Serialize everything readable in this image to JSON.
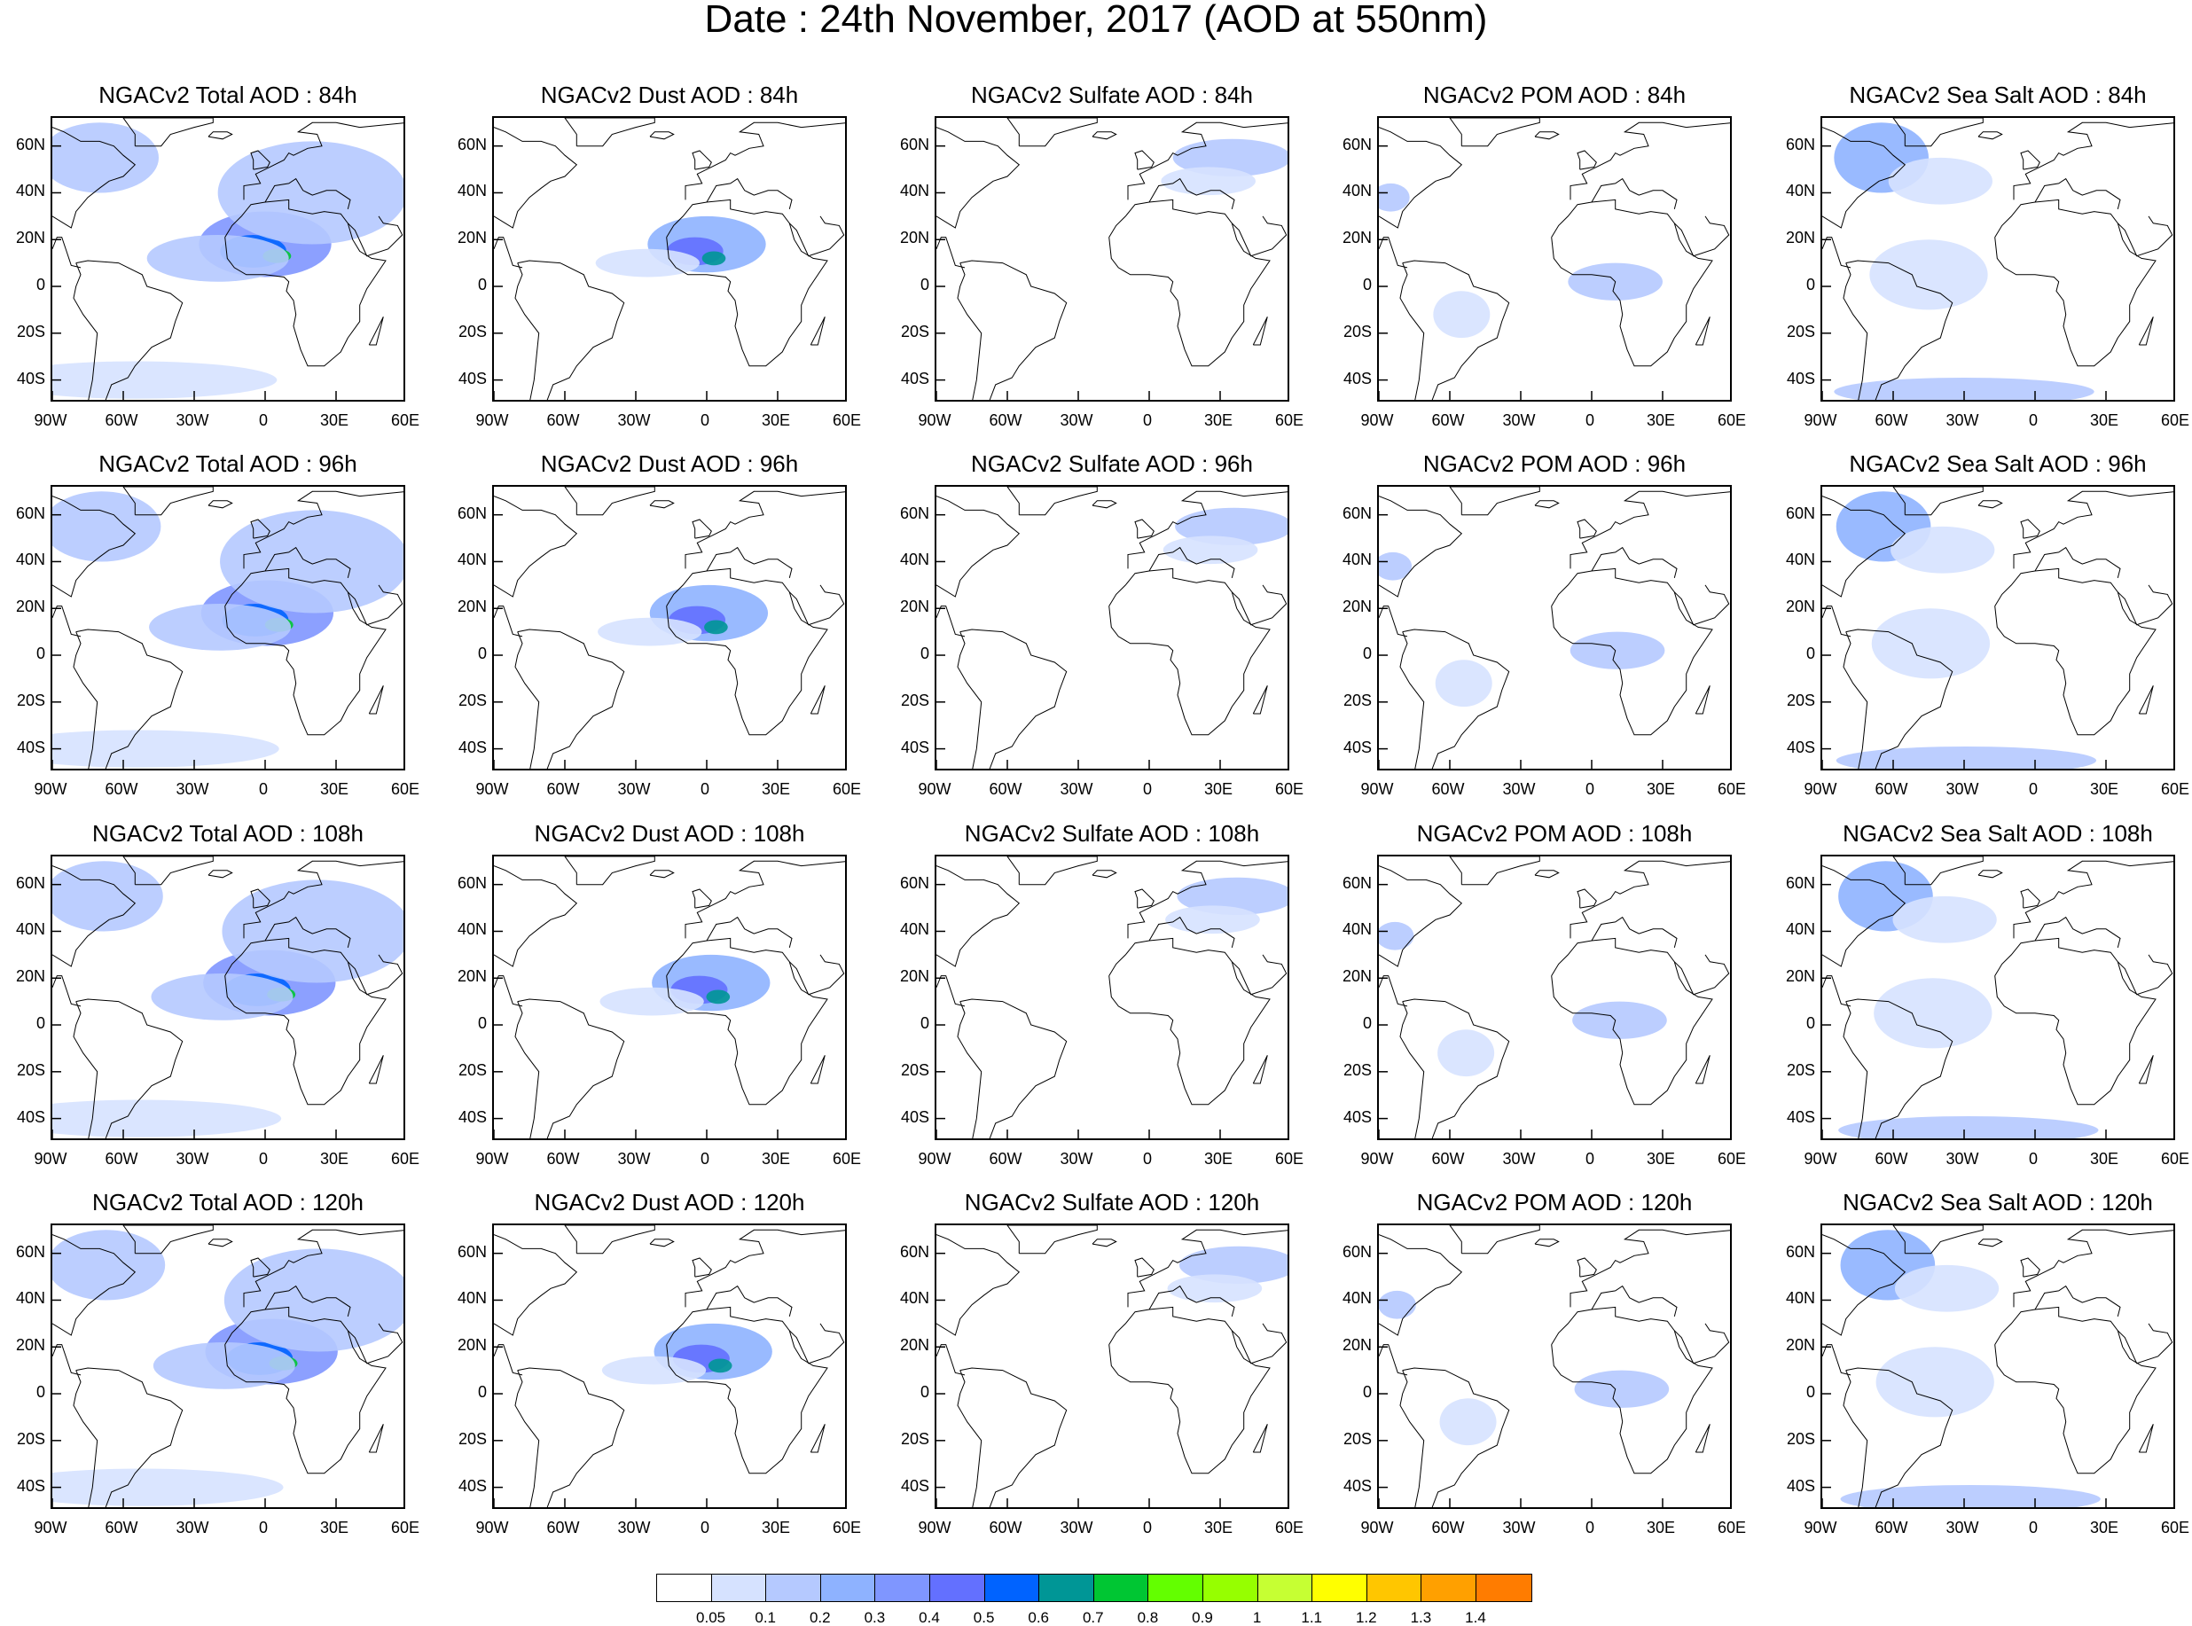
{
  "title": "Date : 24th November, 2017 (AOD at 550nm)",
  "rows": [
    {
      "panels": [
        "NGACv2 Total AOD : 84h",
        "NGACv2 Dust AOD : 84h",
        "NGACv2 Sulfate AOD : 84h",
        "NGACv2 POM AOD : 84h",
        "NGACv2 Sea Salt AOD : 84h"
      ]
    },
    {
      "panels": [
        "NGACv2 Total AOD : 96h",
        "NGACv2 Dust AOD : 96h",
        "NGACv2 Sulfate AOD : 96h",
        "NGACv2 POM AOD : 96h",
        "NGACv2 Sea Salt AOD : 96h"
      ]
    },
    {
      "panels": [
        "NGACv2 Total AOD : 108h",
        "NGACv2 Dust AOD : 108h",
        "NGACv2 Sulfate AOD : 108h",
        "NGACv2 POM AOD : 108h",
        "NGACv2 Sea Salt AOD : 108h"
      ]
    },
    {
      "panels": [
        "NGACv2 Total AOD : 120h",
        "NGACv2 Dust AOD : 120h",
        "NGACv2 Sulfate AOD : 120h",
        "NGACv2 POM AOD : 120h",
        "NGACv2 Sea Salt  AOD : 120h"
      ]
    }
  ],
  "lon_ticks": [
    {
      "value": -90,
      "label": "90W"
    },
    {
      "value": -60,
      "label": "60W"
    },
    {
      "value": -30,
      "label": "30W"
    },
    {
      "value": 0,
      "label": "0"
    },
    {
      "value": 30,
      "label": "30E"
    },
    {
      "value": 60,
      "label": "60E"
    }
  ],
  "lat_ticks": [
    {
      "value": 60,
      "label": "60N"
    },
    {
      "value": 40,
      "label": "40N"
    },
    {
      "value": 20,
      "label": "20N"
    },
    {
      "value": 0,
      "label": "0"
    },
    {
      "value": -20,
      "label": "20S"
    },
    {
      "value": -40,
      "label": "40S"
    }
  ],
  "extent": {
    "lon": [
      -90,
      60
    ],
    "lat": [
      -50,
      72
    ]
  },
  "colorbar": {
    "colors": [
      "#ffffff",
      "#d6e2ff",
      "#b5c9ff",
      "#8eb2ff",
      "#7f96ff",
      "#6370ff",
      "#0063ff",
      "#009696",
      "#00c633",
      "#63ff00",
      "#96ff00",
      "#c6ff33",
      "#ffff00",
      "#ffc600",
      "#ffa000",
      "#ff7c00",
      "#ff1900"
    ],
    "labels": [
      "0.05",
      "0.1",
      "0.2",
      "0.3",
      "0.4",
      "0.5",
      "0.6",
      "0.7",
      "0.8",
      "0.9",
      "1",
      "1.1",
      "1.2",
      "1.3",
      "1.4"
    ]
  },
  "plumes": {
    "total": [
      {
        "lon": 0,
        "lat": 18,
        "rx": 28,
        "ry": 14,
        "level": 4
      },
      {
        "lon": -5,
        "lat": 15,
        "rx": 14,
        "ry": 7,
        "level": 6
      },
      {
        "lon": 5,
        "lat": 13,
        "rx": 6,
        "ry": 3,
        "level": 8
      },
      {
        "lon": -20,
        "lat": 12,
        "rx": 30,
        "ry": 10,
        "level": 2
      },
      {
        "lon": 20,
        "lat": 40,
        "rx": 40,
        "ry": 22,
        "level": 2
      },
      {
        "lon": -70,
        "lat": 55,
        "rx": 25,
        "ry": 15,
        "level": 2
      },
      {
        "lon": -55,
        "lat": -40,
        "rx": 60,
        "ry": 8,
        "level": 1
      }
    ],
    "dust": [
      {
        "lon": 0,
        "lat": 18,
        "rx": 25,
        "ry": 12,
        "level": 3
      },
      {
        "lon": -5,
        "lat": 15,
        "rx": 12,
        "ry": 6,
        "level": 5
      },
      {
        "lon": 3,
        "lat": 12,
        "rx": 5,
        "ry": 3,
        "level": 7
      },
      {
        "lon": -25,
        "lat": 10,
        "rx": 22,
        "ry": 6,
        "level": 1
      }
    ],
    "sulfate": [
      {
        "lon": 35,
        "lat": 55,
        "rx": 25,
        "ry": 8,
        "level": 2
      },
      {
        "lon": 25,
        "lat": 45,
        "rx": 20,
        "ry": 6,
        "level": 1
      }
    ],
    "pom": [
      {
        "lon": 10,
        "lat": 2,
        "rx": 20,
        "ry": 8,
        "level": 2
      },
      {
        "lon": -55,
        "lat": -12,
        "rx": 12,
        "ry": 10,
        "level": 1
      },
      {
        "lon": -85,
        "lat": 38,
        "rx": 8,
        "ry": 6,
        "level": 2
      }
    ],
    "seasalt": [
      {
        "lon": -65,
        "lat": 55,
        "rx": 20,
        "ry": 15,
        "level": 3
      },
      {
        "lon": -40,
        "lat": 45,
        "rx": 22,
        "ry": 10,
        "level": 1
      },
      {
        "lon": -30,
        "lat": -45,
        "rx": 55,
        "ry": 6,
        "level": 2
      },
      {
        "lon": -45,
        "lat": 5,
        "rx": 25,
        "ry": 15,
        "level": 1
      }
    ]
  },
  "row_shift": [
    0,
    3,
    6,
    9
  ]
}
